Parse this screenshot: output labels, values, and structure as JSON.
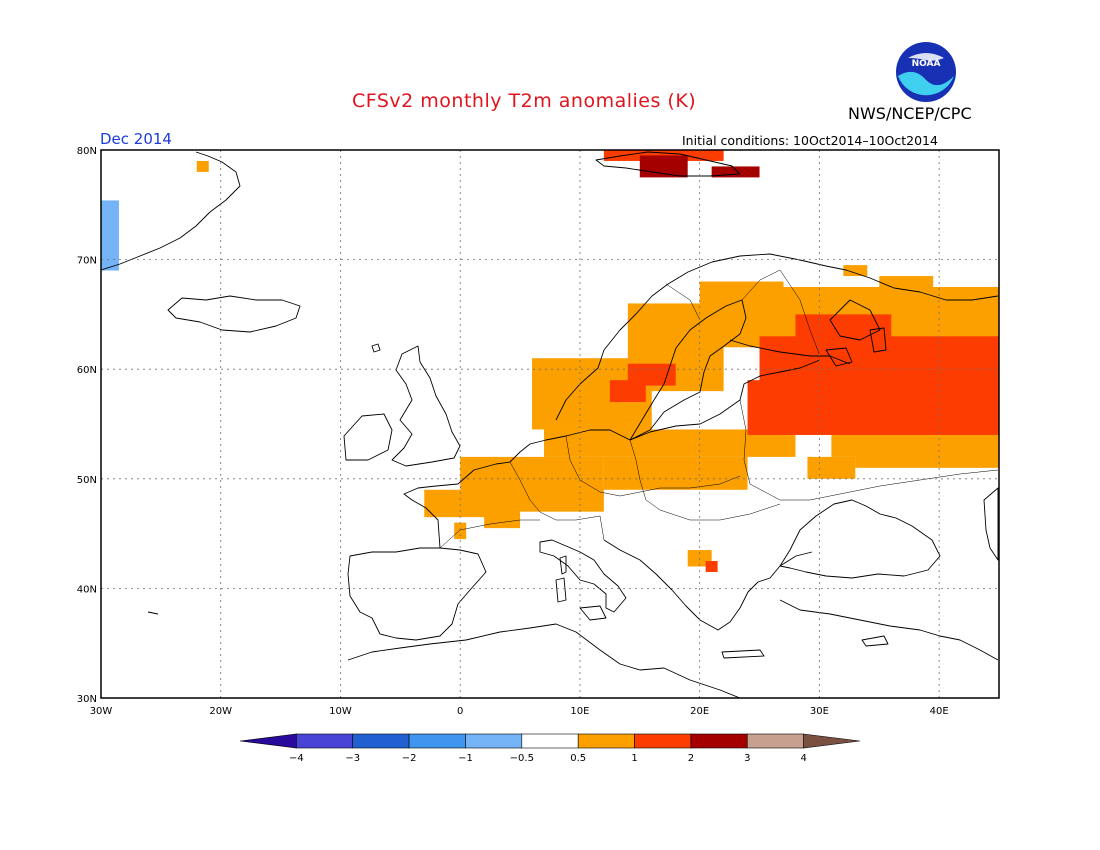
{
  "header": {
    "title": "CFSv2 monthly T2m anomalies (K)",
    "agency": "NWS/NCEP/CPC",
    "valid_month": "Dec 2014",
    "initial_conditions": "Initial conditions: 10Oct2014–10Oct2014",
    "logo_text": "NOAA"
  },
  "map": {
    "lat_range": [
      30,
      80
    ],
    "lon_range": [
      -30,
      45
    ],
    "lat_labels": [
      "30N",
      "40N",
      "50N",
      "60N",
      "70N",
      "80N"
    ],
    "lon_labels": [
      "30W",
      "20W",
      "10W",
      "0",
      "10E",
      "20E",
      "30E",
      "40E"
    ],
    "colors": {
      "lt_blue": "#74b4f6",
      "orange": "#fca000",
      "red_orange": "#fc3c00",
      "dark_red": "#a40000"
    },
    "anomaly_cells": [
      {
        "lon0": -30,
        "lat0": 69,
        "lon1": -28.5,
        "lat1": 75.4,
        "category": "lt_blue"
      },
      {
        "lon0": -22,
        "lat0": 78,
        "lon1": -21,
        "lat1": 79,
        "category": "orange"
      },
      {
        "lon0": 12,
        "lat0": 79,
        "lon1": 22,
        "lat1": 80,
        "category": "red_orange"
      },
      {
        "lon0": 15,
        "lat0": 77.5,
        "lon1": 19,
        "lat1": 79.5,
        "category": "dark_red"
      },
      {
        "lon0": 21,
        "lat0": 77.5,
        "lon1": 25,
        "lat1": 78.5,
        "category": "dark_red"
      },
      {
        "lon0": 7,
        "lat0": 52,
        "lon1": 28,
        "lat1": 54.5,
        "category": "orange"
      },
      {
        "lon0": 0,
        "lat0": 47,
        "lon1": 12,
        "lat1": 52,
        "category": "orange"
      },
      {
        "lon0": -3,
        "lat0": 46.5,
        "lon1": 5,
        "lat1": 49,
        "category": "orange"
      },
      {
        "lon0": 2,
        "lat0": 45.5,
        "lon1": 5,
        "lat1": 47,
        "category": "orange"
      },
      {
        "lon0": -0.5,
        "lat0": 44.5,
        "lon1": 0.5,
        "lat1": 46,
        "category": "orange"
      },
      {
        "lon0": 12,
        "lat0": 49,
        "lon1": 24,
        "lat1": 52,
        "category": "orange"
      },
      {
        "lon0": 6,
        "lat0": 54.5,
        "lon1": 16,
        "lat1": 61,
        "category": "orange"
      },
      {
        "lon0": 14,
        "lat0": 58,
        "lon1": 22,
        "lat1": 66,
        "category": "orange"
      },
      {
        "lon0": 20,
        "lat0": 62,
        "lon1": 27,
        "lat1": 68,
        "category": "orange"
      },
      {
        "lon0": 26,
        "lat0": 54.5,
        "lon1": 45,
        "lat1": 67.5,
        "category": "orange"
      },
      {
        "lon0": 31,
        "lat0": 52,
        "lon1": 45,
        "lat1": 58,
        "category": "orange"
      },
      {
        "lon0": 33,
        "lat0": 51,
        "lon1": 45,
        "lat1": 53,
        "category": "orange"
      },
      {
        "lon0": 29,
        "lat0": 50,
        "lon1": 33,
        "lat1": 52,
        "category": "orange"
      },
      {
        "lon0": 35,
        "lat0": 66,
        "lon1": 39.5,
        "lat1": 68.5,
        "category": "orange"
      },
      {
        "lon0": 32,
        "lat0": 68.5,
        "lon1": 34,
        "lat1": 69.5,
        "category": "orange"
      },
      {
        "lon0": 19,
        "lat0": 42,
        "lon1": 21,
        "lat1": 43.5,
        "category": "orange"
      },
      {
        "lon0": 20.5,
        "lat0": 41.5,
        "lon1": 21.5,
        "lat1": 42.5,
        "category": "red_orange"
      },
      {
        "lon0": 12.5,
        "lat0": 57,
        "lon1": 15.5,
        "lat1": 59,
        "category": "red_orange"
      },
      {
        "lon0": 14,
        "lat0": 58.5,
        "lon1": 18,
        "lat1": 60.5,
        "category": "red_orange"
      },
      {
        "lon0": 24,
        "lat0": 54,
        "lon1": 45,
        "lat1": 59,
        "category": "red_orange"
      },
      {
        "lon0": 25,
        "lat0": 58,
        "lon1": 45,
        "lat1": 63,
        "category": "red_orange"
      },
      {
        "lon0": 28,
        "lat0": 62,
        "lon1": 36,
        "lat1": 65,
        "category": "red_orange"
      }
    ]
  },
  "colorbar": {
    "colors": [
      "#2a0a9c",
      "#4a44d6",
      "#2060d0",
      "#4096ee",
      "#74b4f6",
      "#ffffff",
      "#fca000",
      "#fc3c00",
      "#a40000",
      "#c8a090",
      "#7a5040"
    ],
    "labels": [
      "−4",
      "−3",
      "−2",
      "−1",
      "−0.5",
      "0.5",
      "1",
      "2",
      "3",
      "4"
    ]
  }
}
